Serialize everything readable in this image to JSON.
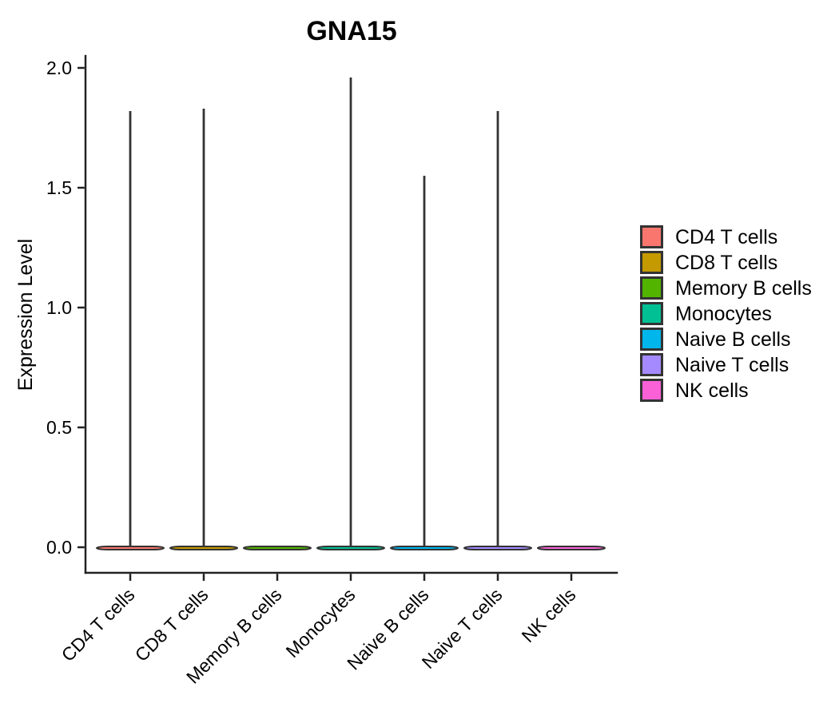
{
  "figure": {
    "background": "#FFFFFF",
    "axis_color": "#222222",
    "violin_outline_color": "#333333",
    "text_color": "#000000"
  },
  "chart_data": {
    "type": "violin",
    "title": "GNA15",
    "xlabel": "",
    "ylabel": "Expression Level",
    "ylim": [
      0,
      2.0
    ],
    "grid": false,
    "legend_position": "right",
    "axis_style": "classic-left-bottom-only",
    "x_label_rotation_deg": 45,
    "y_ticks": [
      {
        "value": 0.0,
        "label": "0.0"
      },
      {
        "value": 0.5,
        "label": "0.5"
      },
      {
        "value": 1.0,
        "label": "1.0"
      },
      {
        "value": 1.5,
        "label": "1.5"
      },
      {
        "value": 2.0,
        "label": "2.0"
      }
    ],
    "categories": [
      "CD4 T cells",
      "CD8 T cells",
      "Memory B cells",
      "Monocytes",
      "Naive B cells",
      "Naive T cells",
      "NK cells"
    ],
    "series": [
      {
        "name": "CD4 T cells",
        "color": "#F8766D",
        "max_expression": 1.82,
        "bulk_expression": 0.0,
        "shape": "flat-base-with-spike"
      },
      {
        "name": "CD8 T cells",
        "color": "#C49A00",
        "max_expression": 1.83,
        "bulk_expression": 0.0,
        "shape": "flat-base-with-spike"
      },
      {
        "name": "Memory B cells",
        "color": "#53B400",
        "max_expression": 0.0,
        "bulk_expression": 0.0,
        "shape": "flat-base-only"
      },
      {
        "name": "Monocytes",
        "color": "#00C094",
        "max_expression": 1.96,
        "bulk_expression": 0.0,
        "shape": "flat-base-with-spike"
      },
      {
        "name": "Naive B cells",
        "color": "#00B6EB",
        "max_expression": 1.55,
        "bulk_expression": 0.0,
        "shape": "flat-base-with-spike"
      },
      {
        "name": "Naive T cells",
        "color": "#A58AFF",
        "max_expression": 1.82,
        "bulk_expression": 0.0,
        "shape": "flat-base-with-spike"
      },
      {
        "name": "NK cells",
        "color": "#FB61D7",
        "max_expression": 0.0,
        "bulk_expression": 0.0,
        "shape": "flat-base-only"
      }
    ],
    "legend": {
      "entries": [
        {
          "label": "CD4 T cells",
          "color": "#F8766D"
        },
        {
          "label": "CD8 T cells",
          "color": "#C49A00"
        },
        {
          "label": "Memory B cells",
          "color": "#53B400"
        },
        {
          "label": "Monocytes",
          "color": "#00C094"
        },
        {
          "label": "Naive B cells",
          "color": "#00B6EB"
        },
        {
          "label": "Naive T cells",
          "color": "#A58AFF"
        },
        {
          "label": "NK cells",
          "color": "#FB61D7"
        }
      ]
    }
  }
}
